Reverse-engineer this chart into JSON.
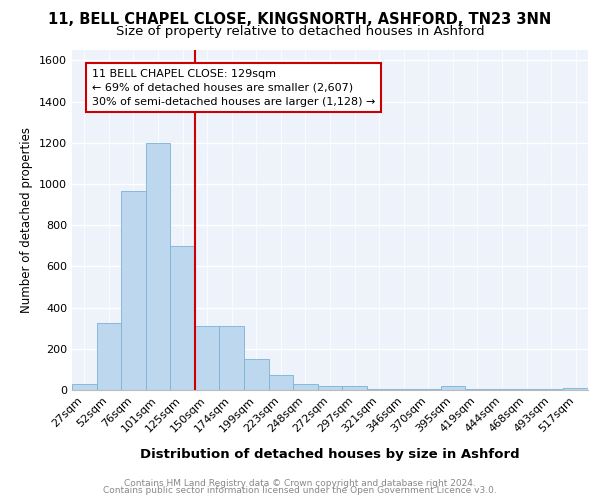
{
  "title1": "11, BELL CHAPEL CLOSE, KINGSNORTH, ASHFORD, TN23 3NN",
  "title2": "Size of property relative to detached houses in Ashford",
  "xlabel": "Distribution of detached houses by size in Ashford",
  "ylabel": "Number of detached properties",
  "categories": [
    "27sqm",
    "52sqm",
    "76sqm",
    "101sqm",
    "125sqm",
    "150sqm",
    "174sqm",
    "199sqm",
    "223sqm",
    "248sqm",
    "272sqm",
    "297sqm",
    "321sqm",
    "346sqm",
    "370sqm",
    "395sqm",
    "419sqm",
    "444sqm",
    "468sqm",
    "493sqm",
    "517sqm"
  ],
  "values": [
    30,
    325,
    965,
    1200,
    700,
    310,
    310,
    150,
    75,
    30,
    20,
    20,
    5,
    5,
    5,
    20,
    5,
    5,
    5,
    5,
    10
  ],
  "bar_color": "#bdd7ee",
  "bar_edgecolor": "#7ab3d4",
  "property_line_color": "#cc0000",
  "annotation_line1": "11 BELL CHAPEL CLOSE: 129sqm",
  "annotation_line2": "← 69% of detached houses are smaller (2,607)",
  "annotation_line3": "30% of semi-detached houses are larger (1,128) →",
  "annotation_box_edgecolor": "#cc0000",
  "annotation_box_facecolor": "#ffffff",
  "ylim": [
    0,
    1650
  ],
  "yticks": [
    0,
    200,
    400,
    600,
    800,
    1000,
    1200,
    1400,
    1600
  ],
  "background_color": "#eef2fb",
  "footer_line1": "Contains HM Land Registry data © Crown copyright and database right 2024.",
  "footer_line2": "Contains public sector information licensed under the Open Government Licence v3.0.",
  "title1_fontsize": 10.5,
  "title2_fontsize": 9.5,
  "xlabel_fontsize": 9.5,
  "ylabel_fontsize": 8.5,
  "tick_fontsize": 8,
  "annotation_fontsize": 8,
  "footer_fontsize": 6.5
}
